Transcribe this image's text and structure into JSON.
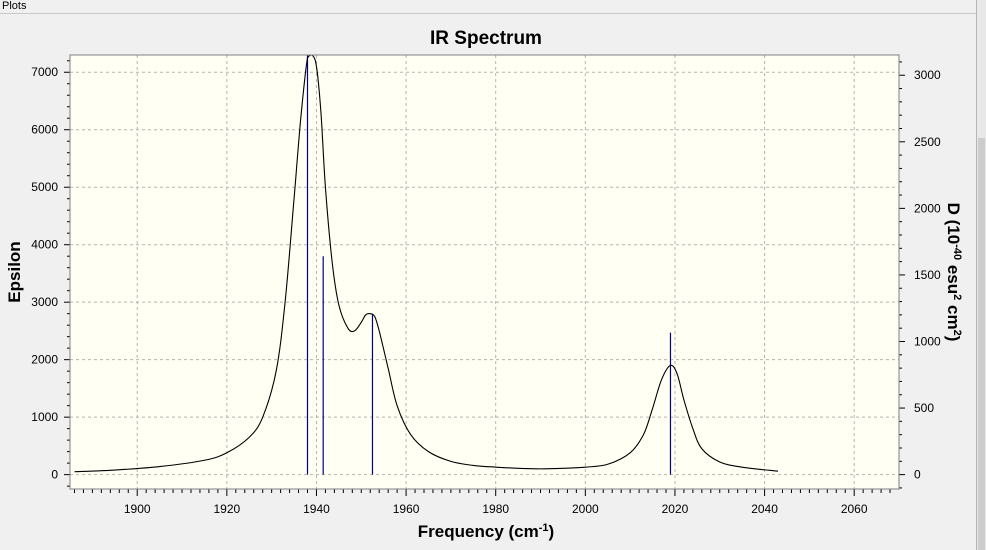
{
  "window": {
    "title": "Plots"
  },
  "chart_data": {
    "type": "line",
    "title": "IR Spectrum",
    "xlabel": "Frequency (cm",
    "xlabel_sup": "-1",
    "xlabel_end": ")",
    "ylabel": "Epsilon",
    "y2label": "D (10",
    "y2label_sup1": "-40",
    "y2label_mid": " esu",
    "y2label_sup2": "2",
    "y2label_mid2": " cm",
    "y2label_sup3": "2",
    "y2label_end": ")",
    "xlim": [
      1885,
      2070
    ],
    "ylim": [
      -250,
      7300
    ],
    "y2lim": [
      -108,
      3152
    ],
    "grid": true,
    "x_ticks": [
      1900,
      1920,
      1940,
      1960,
      1980,
      2000,
      2020,
      2040,
      2060
    ],
    "y_ticks": [
      0,
      1000,
      2000,
      3000,
      4000,
      5000,
      6000,
      7000
    ],
    "y2_ticks": [
      0,
      500,
      1000,
      1500,
      2000,
      2500,
      3000
    ],
    "colors": {
      "curve": "#000000",
      "sticks": "#00008b",
      "plot_bg": "#fffff4",
      "grid": "#b4b4b4"
    },
    "series": [
      {
        "name": "Epsilon",
        "x": [
          1886,
          1895,
          1905,
          1915,
          1920,
          1925,
          1928,
          1931,
          1933,
          1935,
          1936.5,
          1938,
          1939,
          1940,
          1941,
          1942,
          1943.5,
          1945,
          1947,
          1948.5,
          1950,
          1951,
          1952,
          1953,
          1954,
          1956,
          1958,
          1961,
          1965,
          1970,
          1975,
          1980,
          1985,
          1990,
          1995,
          2000,
          2005,
          2010,
          2013,
          2015,
          2017,
          2019,
          2020.5,
          2022,
          2024,
          2026,
          2030,
          2035,
          2043
        ],
        "y": [
          50,
          80,
          140,
          250,
          380,
          650,
          1000,
          1800,
          3000,
          4800,
          6200,
          7250,
          7300,
          7100,
          6300,
          5000,
          3700,
          2950,
          2550,
          2500,
          2650,
          2780,
          2800,
          2750,
          2500,
          1850,
          1200,
          700,
          400,
          230,
          160,
          130,
          110,
          100,
          110,
          130,
          180,
          380,
          700,
          1150,
          1650,
          1900,
          1750,
          1300,
          800,
          450,
          220,
          130,
          60
        ]
      }
    ],
    "sticks": [
      {
        "x": 1938,
        "y": 7300
      },
      {
        "x": 1941.5,
        "y": 3800
      },
      {
        "x": 1952.5,
        "y": 2800
      },
      {
        "x": 2019,
        "y": 2470
      }
    ]
  }
}
